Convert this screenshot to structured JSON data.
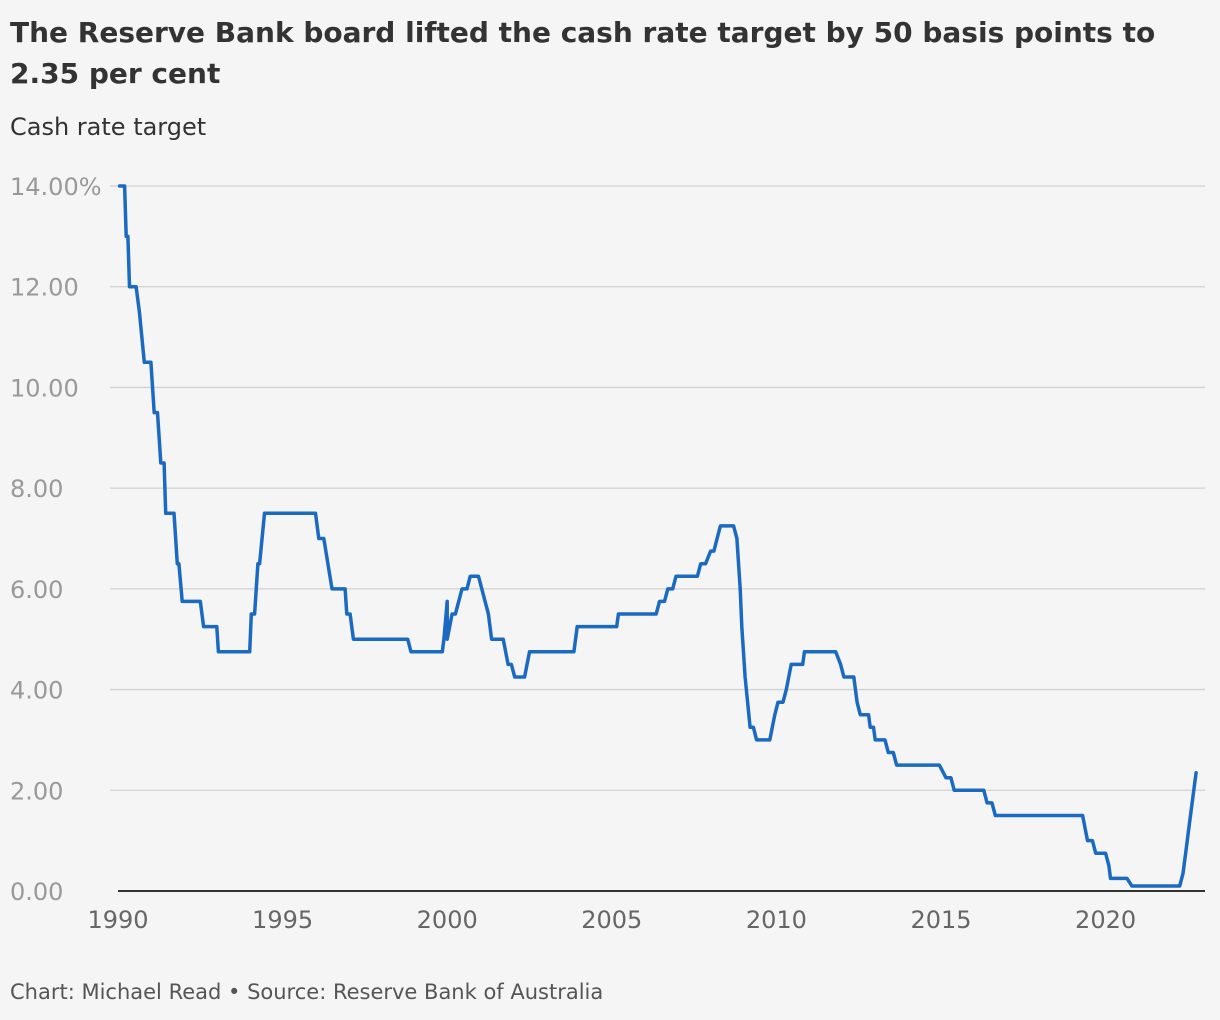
{
  "header": {
    "title": "The Reserve Bank board lifted the cash rate target by 50 basis points to 2.35 per cent",
    "subtitle": "Cash rate target"
  },
  "footer": {
    "credit": "Chart: Michael Read • Source: Reserve Bank of Australia"
  },
  "colors": {
    "series": "#1b6ac1",
    "grid": "#d2d2d2",
    "axis": "#333333"
  },
  "chart_data": {
    "type": "line",
    "title": "The Reserve Bank board lifted the cash rate target by 50 basis points to 2.35 per cent",
    "ylabel": "Cash rate target",
    "xlabel": "",
    "xlim": [
      1990,
      2022.8
    ],
    "ylim": [
      0,
      14
    ],
    "grid": "horizontal",
    "x_ticks": [
      {
        "value": 1990,
        "label": "1990"
      },
      {
        "value": 1995,
        "label": "1995"
      },
      {
        "value": 2000,
        "label": "2000"
      },
      {
        "value": 2005,
        "label": "2005"
      },
      {
        "value": 2010,
        "label": "2010"
      },
      {
        "value": 2015,
        "label": "2015"
      },
      {
        "value": 2020,
        "label": "2020"
      }
    ],
    "y_ticks": [
      {
        "value": 14,
        "label": "14.00%"
      },
      {
        "value": 12,
        "label": "12.00"
      },
      {
        "value": 10,
        "label": "10.00"
      },
      {
        "value": 8,
        "label": "8.00"
      },
      {
        "value": 6,
        "label": "6.00"
      },
      {
        "value": 4,
        "label": "4.00"
      },
      {
        "value": 2,
        "label": "2.00"
      },
      {
        "value": 0,
        "label": "0.00"
      }
    ],
    "series": [
      {
        "points": [
          [
            1990.05,
            14.0
          ],
          [
            1990.2,
            14.0
          ],
          [
            1990.25,
            13.0
          ],
          [
            1990.3,
            13.0
          ],
          [
            1990.35,
            12.0
          ],
          [
            1990.55,
            12.0
          ],
          [
            1990.65,
            11.5
          ],
          [
            1990.8,
            10.5
          ],
          [
            1991.0,
            10.5
          ],
          [
            1991.1,
            9.5
          ],
          [
            1991.2,
            9.5
          ],
          [
            1991.3,
            8.5
          ],
          [
            1991.4,
            8.5
          ],
          [
            1991.45,
            7.5
          ],
          [
            1991.7,
            7.5
          ],
          [
            1991.8,
            6.5
          ],
          [
            1991.85,
            6.5
          ],
          [
            1991.95,
            5.75
          ],
          [
            2000.0,
            5.75
          ],
          [
            1992.5,
            5.75
          ],
          [
            1992.6,
            5.25
          ],
          [
            1992.8,
            5.25
          ],
          [
            1992.85,
            5.25
          ],
          [
            1993.0,
            5.25
          ],
          [
            1993.05,
            4.75
          ],
          [
            1994.0,
            4.75
          ],
          [
            1994.05,
            5.5
          ],
          [
            1994.15,
            5.5
          ],
          [
            1994.25,
            6.5
          ],
          [
            1994.3,
            6.5
          ],
          [
            1994.45,
            7.5
          ],
          [
            1996.0,
            7.5
          ],
          [
            1996.1,
            7.0
          ],
          [
            1996.25,
            7.0
          ],
          [
            1996.5,
            6.0
          ],
          [
            1996.9,
            6.0
          ],
          [
            1996.95,
            5.5
          ],
          [
            1997.05,
            5.5
          ],
          [
            1997.15,
            5.0
          ],
          [
            1998.8,
            5.0
          ],
          [
            1998.9,
            4.75
          ],
          [
            1999.85,
            4.75
          ],
          [
            1999.9,
            5.0
          ],
          [
            2000.0,
            5.0
          ],
          [
            2000.15,
            5.5
          ],
          [
            2000.25,
            5.5
          ],
          [
            2000.45,
            6.0
          ],
          [
            2000.6,
            6.0
          ],
          [
            2000.7,
            6.25
          ],
          [
            2000.95,
            6.25
          ],
          [
            2001.15,
            5.75
          ],
          [
            2001.25,
            5.5
          ],
          [
            2001.35,
            5.0
          ],
          [
            2001.7,
            5.0
          ],
          [
            2001.85,
            4.5
          ],
          [
            2001.95,
            4.5
          ],
          [
            2002.05,
            4.25
          ],
          [
            2002.35,
            4.25
          ],
          [
            2002.5,
            4.75
          ],
          [
            2003.85,
            4.75
          ],
          [
            2003.95,
            5.25
          ],
          [
            2005.15,
            5.25
          ],
          [
            2005.2,
            5.5
          ],
          [
            2006.35,
            5.5
          ],
          [
            2006.45,
            5.75
          ],
          [
            2006.6,
            5.75
          ],
          [
            2006.7,
            6.0
          ],
          [
            2006.85,
            6.0
          ],
          [
            2006.95,
            6.25
          ],
          [
            2007.6,
            6.25
          ],
          [
            2007.7,
            6.5
          ],
          [
            2007.85,
            6.5
          ],
          [
            2008.0,
            6.75
          ],
          [
            2008.1,
            6.75
          ],
          [
            2008.2,
            7.0
          ],
          [
            2008.3,
            7.25
          ],
          [
            2008.7,
            7.25
          ],
          [
            2008.8,
            7.0
          ],
          [
            2008.9,
            6.0
          ],
          [
            2008.95,
            5.25
          ],
          [
            2009.05,
            4.25
          ],
          [
            2009.2,
            3.25
          ],
          [
            2009.3,
            3.25
          ],
          [
            2009.4,
            3.0
          ],
          [
            2009.8,
            3.0
          ],
          [
            2009.95,
            3.5
          ],
          [
            2010.05,
            3.75
          ],
          [
            2010.2,
            3.75
          ],
          [
            2010.3,
            4.0
          ],
          [
            2010.45,
            4.5
          ],
          [
            2010.8,
            4.5
          ],
          [
            2010.85,
            4.75
          ],
          [
            2011.8,
            4.75
          ],
          [
            2011.95,
            4.5
          ],
          [
            2012.05,
            4.25
          ],
          [
            2012.35,
            4.25
          ],
          [
            2012.45,
            3.75
          ],
          [
            2012.55,
            3.5
          ],
          [
            2012.8,
            3.5
          ],
          [
            2012.85,
            3.25
          ],
          [
            2012.95,
            3.25
          ],
          [
            2013.0,
            3.0
          ],
          [
            2013.3,
            3.0
          ],
          [
            2013.4,
            2.75
          ],
          [
            2013.55,
            2.75
          ],
          [
            2013.65,
            2.5
          ],
          [
            2014.95,
            2.5
          ],
          [
            2015.15,
            2.25
          ],
          [
            2015.3,
            2.25
          ],
          [
            2015.4,
            2.0
          ],
          [
            2016.3,
            2.0
          ],
          [
            2016.4,
            1.75
          ],
          [
            2016.55,
            1.75
          ],
          [
            2016.65,
            1.5
          ],
          [
            2019.3,
            1.5
          ],
          [
            2019.45,
            1.0
          ],
          [
            2019.6,
            1.0
          ],
          [
            2019.7,
            0.75
          ],
          [
            2020.0,
            0.75
          ],
          [
            2020.1,
            0.5
          ],
          [
            2020.15,
            0.25
          ],
          [
            2020.65,
            0.25
          ],
          [
            2020.8,
            0.1
          ],
          [
            2022.25,
            0.1
          ],
          [
            2022.35,
            0.35
          ],
          [
            2022.45,
            0.85
          ],
          [
            2022.55,
            1.35
          ],
          [
            2022.65,
            1.85
          ],
          [
            2022.75,
            2.35
          ]
        ]
      }
    ]
  }
}
